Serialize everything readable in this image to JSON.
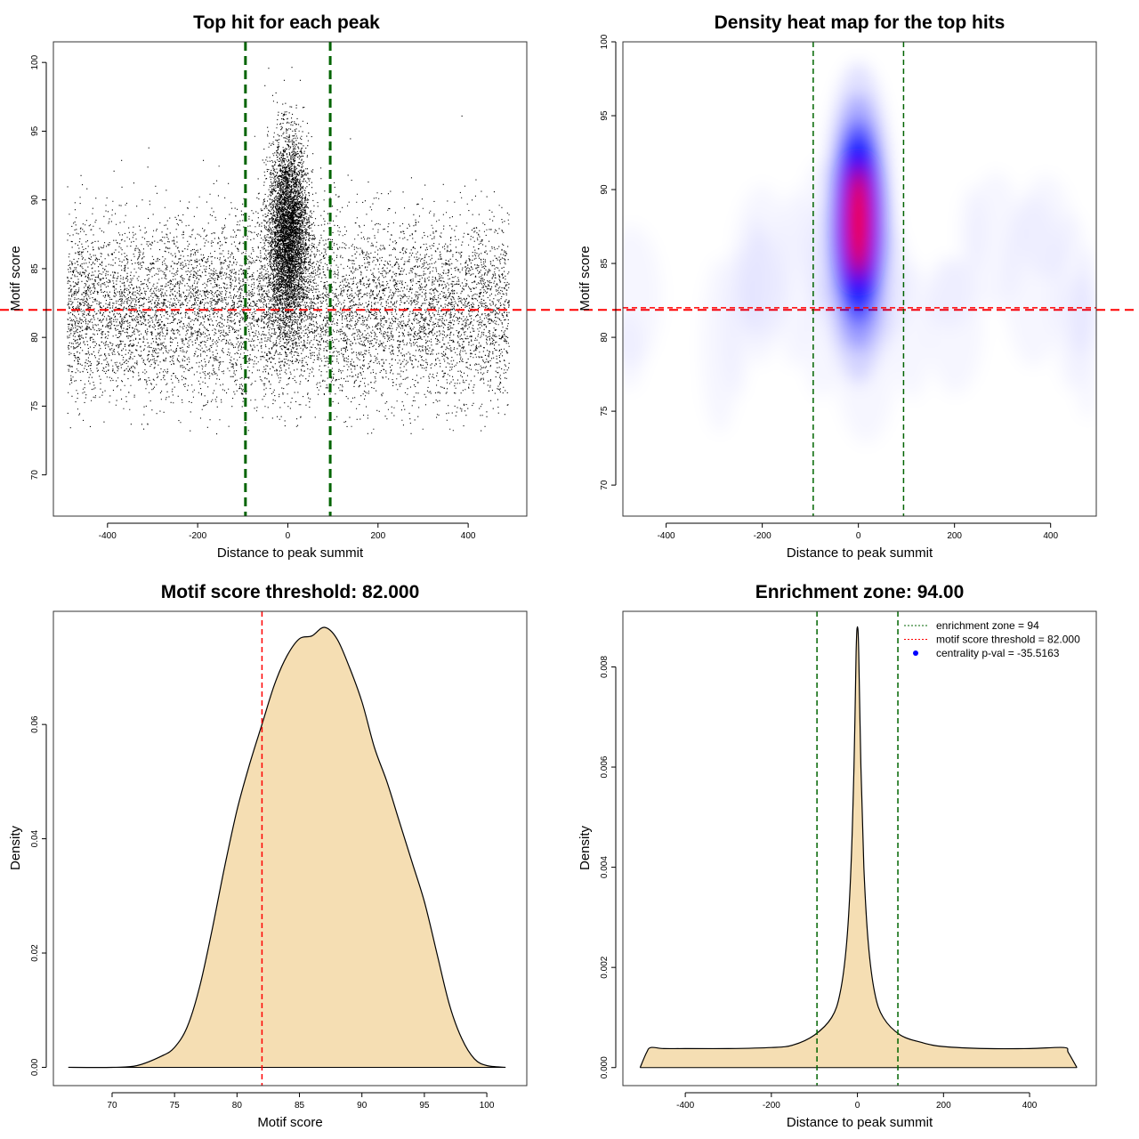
{
  "chart_data": [
    {
      "type": "scatter",
      "title": "Top hit for each peak",
      "xlabel": "Distance to peak summit",
      "ylabel": "Motif score",
      "xlim": [
        -520,
        530
      ],
      "ylim": [
        67,
        101.5
      ],
      "xticks": [
        -400,
        -200,
        0,
        200,
        400
      ],
      "yticks": [
        70,
        75,
        80,
        85,
        90,
        95,
        100
      ],
      "vlines": [
        -94,
        94
      ],
      "vline_color": "#006400",
      "hline": 82,
      "hline_color": "#ff0000",
      "point_color": "#000000",
      "background_points": {
        "x_range": [
          -490,
          490
        ],
        "center": 82,
        "spread": 3.3,
        "min": 73,
        "max": 99,
        "count": 9000
      },
      "central_points": {
        "x_center": 0,
        "x_spread": 22,
        "y_center": 87.5,
        "y_spread": 3.4,
        "y_min": 77,
        "y_max": 100,
        "count": 12000
      }
    },
    {
      "type": "heatmap",
      "title": "Density heat map for the top hits",
      "xlabel": "Distance to peak summit",
      "ylabel": "Motif score",
      "xlim": [
        -490,
        495
      ],
      "ylim": [
        67.9,
        100
      ],
      "xticks": [
        -400,
        -200,
        0,
        200,
        400
      ],
      "yticks": [
        70,
        75,
        80,
        85,
        90,
        95,
        100
      ],
      "vlines": [
        -94,
        94
      ],
      "vline_color": "#006400",
      "hline": 82,
      "hline_color": "#ff0000",
      "colors": [
        "#ffffff",
        "#0000ff",
        "#ff0000"
      ],
      "hotspot": {
        "x": 0,
        "y": 87.8,
        "x_spread": 24,
        "y_spread": 3.6
      }
    },
    {
      "type": "area",
      "title": "Motif score threshold: 82.000",
      "xlabel": "Motif score",
      "ylabel": "Density",
      "xlim": [
        65.3,
        103.2
      ],
      "ylim": [
        -0.0032,
        0.0798
      ],
      "xticks": [
        70,
        75,
        80,
        85,
        90,
        95,
        100
      ],
      "yticks": [
        0.0,
        0.02,
        0.04,
        0.06
      ],
      "ytick_labels": [
        "0.00",
        "0.02",
        "0.04",
        "0.06"
      ],
      "fill": "#f5deb3",
      "vline": 82,
      "vline_color": "#ff0000",
      "points": [
        [
          66.5,
          0.0
        ],
        [
          70,
          0.0
        ],
        [
          72,
          0.0003
        ],
        [
          74,
          0.002
        ],
        [
          75,
          0.0035
        ],
        [
          76,
          0.007
        ],
        [
          77,
          0.014
        ],
        [
          78,
          0.024
        ],
        [
          79,
          0.035
        ],
        [
          80,
          0.045
        ],
        [
          81,
          0.053
        ],
        [
          82,
          0.06
        ],
        [
          83,
          0.067
        ],
        [
          84,
          0.072
        ],
        [
          85,
          0.075
        ],
        [
          86,
          0.0755
        ],
        [
          87,
          0.077
        ],
        [
          88,
          0.075
        ],
        [
          89,
          0.07
        ],
        [
          90,
          0.064
        ],
        [
          91,
          0.056
        ],
        [
          92,
          0.05
        ],
        [
          93,
          0.043
        ],
        [
          94,
          0.036
        ],
        [
          95,
          0.029
        ],
        [
          96,
          0.02
        ],
        [
          97,
          0.011
        ],
        [
          98,
          0.005
        ],
        [
          99,
          0.0015
        ],
        [
          100,
          0.0003
        ],
        [
          101.5,
          0.0
        ]
      ]
    },
    {
      "type": "area",
      "title": "Enrichment zone: 94.00",
      "xlabel": "Distance to peak summit",
      "ylabel": "Density",
      "xlim": [
        -545,
        555
      ],
      "ylim": [
        -0.00036,
        0.00911
      ],
      "xticks": [
        -400,
        -200,
        0,
        200,
        400
      ],
      "yticks": [
        0.0,
        0.002,
        0.004,
        0.006,
        0.008
      ],
      "ytick_labels": [
        "0.000",
        "0.002",
        "0.004",
        "0.006",
        "0.008"
      ],
      "fill": "#f5deb3",
      "vlines": [
        -94,
        94
      ],
      "vline_color": "#006400",
      "points": [
        [
          -505,
          0.0
        ],
        [
          -490,
          0.0003
        ],
        [
          -480,
          0.0004
        ],
        [
          -450,
          0.00038
        ],
        [
          -400,
          0.00038
        ],
        [
          -300,
          0.00038
        ],
        [
          -200,
          0.0004
        ],
        [
          -150,
          0.00045
        ],
        [
          -100,
          0.00065
        ],
        [
          -60,
          0.001
        ],
        [
          -40,
          0.0015
        ],
        [
          -25,
          0.0025
        ],
        [
          -15,
          0.004
        ],
        [
          -8,
          0.006
        ],
        [
          -3,
          0.0083
        ],
        [
          0,
          0.0088
        ],
        [
          3,
          0.0083
        ],
        [
          8,
          0.006
        ],
        [
          15,
          0.004
        ],
        [
          25,
          0.0025
        ],
        [
          40,
          0.0015
        ],
        [
          60,
          0.001
        ],
        [
          100,
          0.00065
        ],
        [
          150,
          0.0005
        ],
        [
          200,
          0.00042
        ],
        [
          300,
          0.00038
        ],
        [
          400,
          0.00038
        ],
        [
          480,
          0.0004
        ],
        [
          490,
          0.0003
        ],
        [
          510,
          0.0
        ]
      ],
      "legend": [
        {
          "label": "enrichment zone = 94",
          "color": "#006400",
          "symbol": "line"
        },
        {
          "label": "motif score threshold = 82.000",
          "color": "#ff0000",
          "symbol": "line"
        },
        {
          "label": "centrality p-val = -35.5163",
          "color": "#0000ff",
          "symbol": "dot"
        }
      ]
    }
  ]
}
